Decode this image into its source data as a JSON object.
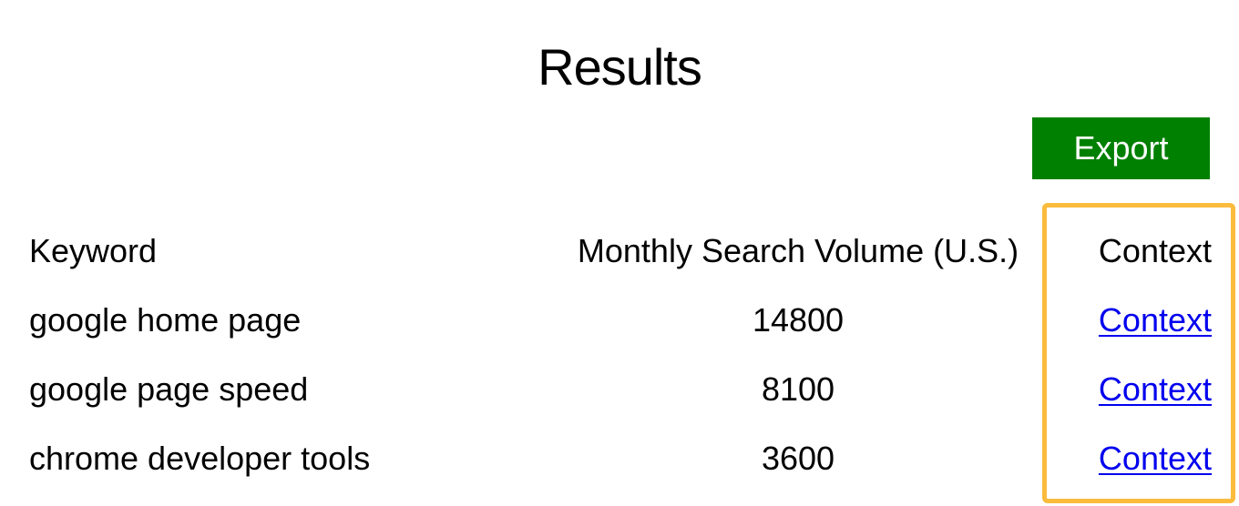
{
  "page": {
    "title": "Results"
  },
  "toolbar": {
    "export_label": "Export",
    "export_color": "#008000"
  },
  "table": {
    "headers": {
      "keyword": "Keyword",
      "volume": "Monthly Search Volume (U.S.)",
      "context": "Context"
    },
    "rows": [
      {
        "keyword": "google home page",
        "volume": "14800",
        "context_link": "Context"
      },
      {
        "keyword": "google page speed",
        "volume": "8100",
        "context_link": "Context"
      },
      {
        "keyword": "chrome developer tools",
        "volume": "3600",
        "context_link": "Context"
      }
    ]
  },
  "colors": {
    "link": "#0000ee",
    "highlight": "#fbbb3d"
  }
}
